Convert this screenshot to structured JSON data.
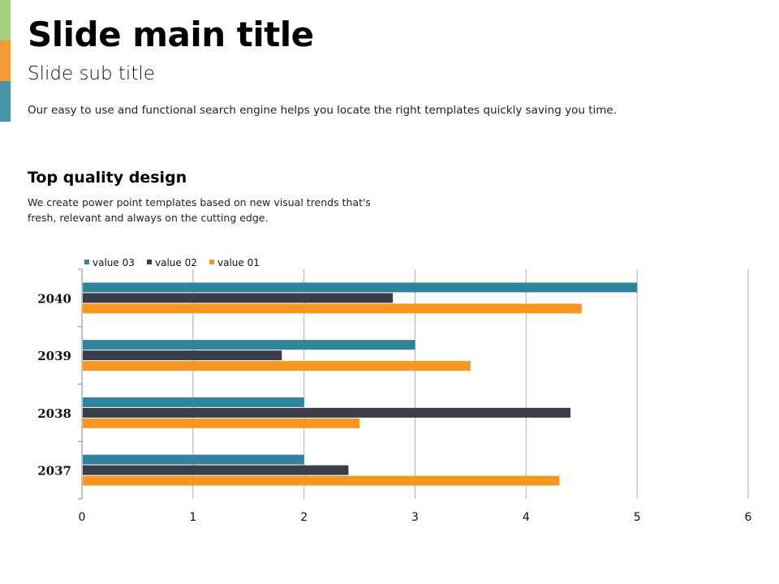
{
  "slide": {
    "title": "Slide main title",
    "subtitle": "Slide sub title",
    "description": "Our easy to use and functional search engine  helps you locate the right templates quickly saving you time.",
    "section_title": "Top quality design",
    "section_body_line1": "We create power point templates based on new visual trends that's",
    "section_body_line2": "fresh, relevant and always on the cutting edge.",
    "accent_colors": [
      "#a3d17f",
      "#f79a33",
      "#4a95a8"
    ]
  },
  "chart_data": {
    "type": "bar",
    "orientation": "horizontal",
    "categories": [
      "2040",
      "2039",
      "2038",
      "2037"
    ],
    "series": [
      {
        "name": "value 03",
        "color": "#31849b",
        "values": [
          5.0,
          3.0,
          2.0,
          2.0
        ]
      },
      {
        "name": "value 02",
        "color": "#3b3d48",
        "values": [
          2.8,
          1.8,
          4.4,
          2.4
        ]
      },
      {
        "name": "value 01",
        "color": "#f79621",
        "values": [
          4.5,
          3.5,
          2.5,
          4.3
        ]
      }
    ],
    "xlim": [
      0,
      6
    ],
    "xticks": [
      "0",
      "1",
      "2",
      "3",
      "4",
      "5",
      "6"
    ],
    "grid": true,
    "legend": "top-left"
  }
}
